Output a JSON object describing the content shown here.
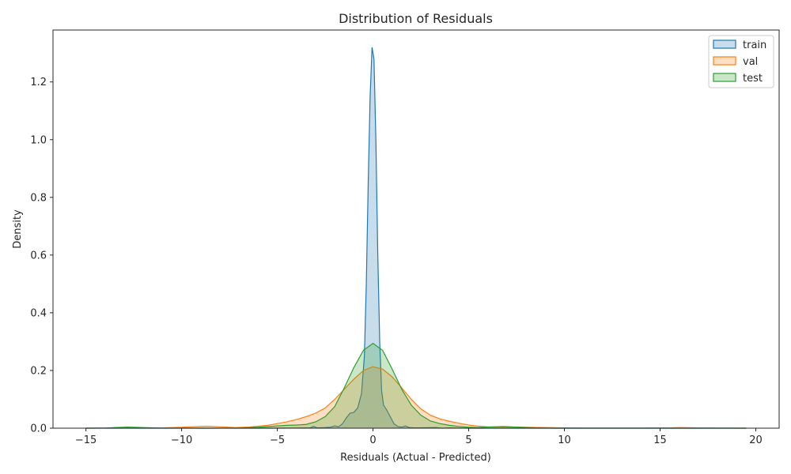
{
  "chart_data": {
    "type": "area",
    "title": "Distribution of Residuals",
    "xlabel": "Residuals (Actual - Predicted)",
    "ylabel": "Density",
    "xlim": [
      -16.72,
      21.22
    ],
    "ylim": [
      0,
      1.38
    ],
    "x_ticks": [
      -15,
      -10,
      -5,
      0,
      5,
      10,
      15,
      20
    ],
    "x_tick_labels": [
      "−15",
      "−10",
      "−5",
      "0",
      "5",
      "10",
      "15",
      "20"
    ],
    "y_ticks": [
      0.0,
      0.2,
      0.4,
      0.6,
      0.8,
      1.0,
      1.2
    ],
    "y_tick_labels": [
      "0.0",
      "0.2",
      "0.4",
      "0.6",
      "0.8",
      "1.0",
      "1.2"
    ],
    "grid": false,
    "legend_position": "top-right",
    "series": [
      {
        "name": "train",
        "color": "#1f77b4",
        "points": [
          [
            -15,
            0
          ],
          [
            -5,
            0
          ],
          [
            -3.3,
            0.001
          ],
          [
            -3.1,
            0.006
          ],
          [
            -2.9,
            0.001
          ],
          [
            -2.5,
            0.002
          ],
          [
            -2.2,
            0.004
          ],
          [
            -2.0,
            0.008
          ],
          [
            -1.8,
            0.005
          ],
          [
            -1.6,
            0.015
          ],
          [
            -1.4,
            0.035
          ],
          [
            -1.2,
            0.052
          ],
          [
            -1.0,
            0.055
          ],
          [
            -0.8,
            0.07
          ],
          [
            -0.6,
            0.12
          ],
          [
            -0.45,
            0.25
          ],
          [
            -0.35,
            0.5
          ],
          [
            -0.25,
            0.85
          ],
          [
            -0.15,
            1.15
          ],
          [
            -0.05,
            1.32
          ],
          [
            0.05,
            1.28
          ],
          [
            0.15,
            1.0
          ],
          [
            0.25,
            0.6
          ],
          [
            0.35,
            0.3
          ],
          [
            0.45,
            0.13
          ],
          [
            0.55,
            0.08
          ],
          [
            0.7,
            0.065
          ],
          [
            0.9,
            0.04
          ],
          [
            1.1,
            0.015
          ],
          [
            1.3,
            0.006
          ],
          [
            1.5,
            0.004
          ],
          [
            1.7,
            0.008
          ],
          [
            1.9,
            0.002
          ],
          [
            2.2,
            0.001
          ],
          [
            3.3,
            0.002
          ],
          [
            3.6,
            0.0
          ],
          [
            4.0,
            0.001
          ],
          [
            5,
            0
          ],
          [
            19.5,
            0
          ]
        ]
      },
      {
        "name": "val",
        "color": "#ff7f0e",
        "points": [
          [
            -15,
            0
          ],
          [
            -11,
            0.001
          ],
          [
            -10,
            0.003
          ],
          [
            -9.5,
            0.005
          ],
          [
            -8.7,
            0.007
          ],
          [
            -8,
            0.005
          ],
          [
            -7.2,
            0.002
          ],
          [
            -6.5,
            0.004
          ],
          [
            -5.5,
            0.01
          ],
          [
            -5,
            0.016
          ],
          [
            -4.5,
            0.022
          ],
          [
            -4,
            0.03
          ],
          [
            -3.5,
            0.04
          ],
          [
            -3,
            0.052
          ],
          [
            -2.5,
            0.07
          ],
          [
            -2,
            0.1
          ],
          [
            -1.5,
            0.135
          ],
          [
            -1,
            0.17
          ],
          [
            -0.5,
            0.2
          ],
          [
            0,
            0.213
          ],
          [
            0.5,
            0.205
          ],
          [
            1,
            0.178
          ],
          [
            1.5,
            0.14
          ],
          [
            2,
            0.1
          ],
          [
            2.5,
            0.067
          ],
          [
            3,
            0.045
          ],
          [
            3.5,
            0.032
          ],
          [
            4,
            0.024
          ],
          [
            4.5,
            0.017
          ],
          [
            5,
            0.011
          ],
          [
            5.5,
            0.007
          ],
          [
            6,
            0.005
          ],
          [
            7,
            0.004
          ],
          [
            8,
            0.003
          ],
          [
            9,
            0.002
          ],
          [
            10,
            0.001
          ],
          [
            11,
            0.0005
          ],
          [
            14,
            0.0005
          ],
          [
            15.5,
            0.001
          ],
          [
            16,
            0.002
          ],
          [
            17,
            0.001
          ],
          [
            19.5,
            0
          ]
        ]
      },
      {
        "name": "test",
        "color": "#2ca02c",
        "points": [
          [
            -15,
            0
          ],
          [
            -14,
            0.0005
          ],
          [
            -13.5,
            0.002
          ],
          [
            -12.8,
            0.004
          ],
          [
            -12,
            0.002
          ],
          [
            -11,
            0.0005
          ],
          [
            -9,
            0.0
          ],
          [
            -7,
            0.0005
          ],
          [
            -6,
            0.003
          ],
          [
            -5,
            0.008
          ],
          [
            -4.5,
            0.01
          ],
          [
            -4,
            0.011
          ],
          [
            -3.5,
            0.013
          ],
          [
            -3,
            0.022
          ],
          [
            -2.5,
            0.04
          ],
          [
            -2,
            0.075
          ],
          [
            -1.5,
            0.14
          ],
          [
            -1,
            0.21
          ],
          [
            -0.5,
            0.27
          ],
          [
            0,
            0.294
          ],
          [
            0.5,
            0.27
          ],
          [
            1,
            0.205
          ],
          [
            1.5,
            0.135
          ],
          [
            2,
            0.08
          ],
          [
            2.5,
            0.045
          ],
          [
            3,
            0.025
          ],
          [
            3.5,
            0.016
          ],
          [
            4,
            0.01
          ],
          [
            4.5,
            0.006
          ],
          [
            5,
            0.003
          ],
          [
            5.5,
            0.002
          ],
          [
            6,
            0.004
          ],
          [
            6.8,
            0.006
          ],
          [
            7.5,
            0.004
          ],
          [
            8.5,
            0.001
          ],
          [
            9.5,
            0.0
          ],
          [
            19.5,
            0
          ]
        ]
      }
    ]
  }
}
